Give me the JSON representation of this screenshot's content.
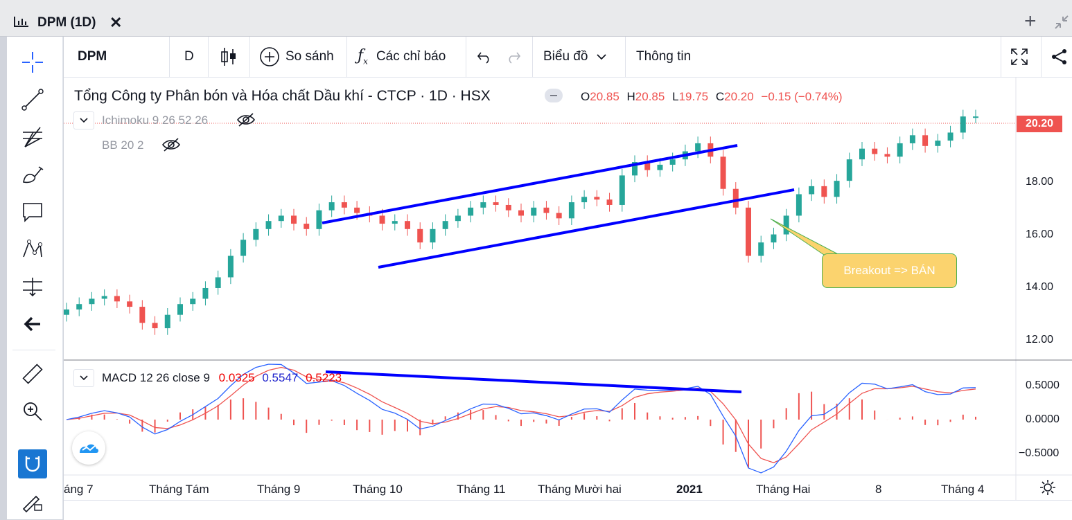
{
  "window": {
    "title": "DPM (1D)",
    "close_glyph": "✕",
    "add_glyph": "+"
  },
  "toolbar": {
    "symbol": "DPM",
    "interval": "D",
    "compare_label": "So sánh",
    "indicators_label": "Các chỉ báo",
    "chart_type_label": "Biểu đồ",
    "info_label": "Thông tin"
  },
  "legend": {
    "title": "Tổng Công ty Phân bón và Hóa chất Dầu khí - CTCP · 1D · HSX",
    "ohlc": {
      "o_label": "O",
      "o": "20.85",
      "h_label": "H",
      "h": "20.85",
      "l_label": "L",
      "l": "19.75",
      "c_label": "C",
      "c": "20.20",
      "change": "−0.15 (−0.74%)"
    },
    "ichimoku": "Ichimoku 9 26 52 26",
    "bb": "BB 20 2",
    "macd": {
      "name": "MACD 12 26 close 9",
      "hist": "0.0325",
      "macd": "0.5547",
      "signal": "0.5223"
    }
  },
  "price_axis": {
    "labels": [
      "18.00",
      "16.00",
      "14.00",
      "12.00"
    ],
    "last_price": "20.20"
  },
  "macd_axis": {
    "labels": [
      "0.5000",
      "0.0000",
      "−0.5000"
    ]
  },
  "time_axis": {
    "labels": [
      "áng 7",
      "Tháng Tám",
      "Tháng 9",
      "Tháng 10",
      "Tháng 11",
      "Tháng Mười hai",
      "2021",
      "Tháng Hai",
      "8",
      "Tháng 4"
    ]
  },
  "annotation": {
    "callout_text": "Breakout => BÁN"
  },
  "colors": {
    "up": "#26a69a",
    "down": "#ef5350",
    "trendline": "#0000ff",
    "macd_line": "#2962ff",
    "signal_line": "#ef5350",
    "active_tool": "#1976d2",
    "callout": "#fbd36e"
  },
  "chart_data": {
    "type": "candlestick",
    "ylim": [
      11.5,
      20.8
    ],
    "series_close": [
      13.0,
      13.2,
      13.4,
      13.5,
      13.3,
      13.1,
      12.5,
      12.3,
      12.8,
      13.2,
      13.4,
      13.8,
      14.2,
      15.0,
      15.6,
      16.0,
      16.3,
      16.5,
      16.2,
      16.0,
      16.7,
      17.0,
      16.8,
      16.6,
      16.5,
      16.2,
      16.3,
      16.0,
      15.5,
      16.0,
      16.3,
      16.5,
      16.8,
      17.0,
      16.9,
      16.7,
      16.5,
      16.8,
      16.6,
      16.4,
      17.0,
      17.2,
      17.1,
      16.9,
      18.0,
      18.5,
      18.2,
      18.4,
      18.6,
      18.9,
      19.2,
      18.7,
      17.5,
      16.8,
      15.0,
      15.5,
      15.8,
      16.5,
      17.3,
      17.6,
      17.2,
      17.8,
      18.6,
      19.0,
      18.8,
      18.7,
      19.2,
      19.5,
      19.1,
      19.3,
      19.6,
      20.2,
      20.2
    ]
  }
}
